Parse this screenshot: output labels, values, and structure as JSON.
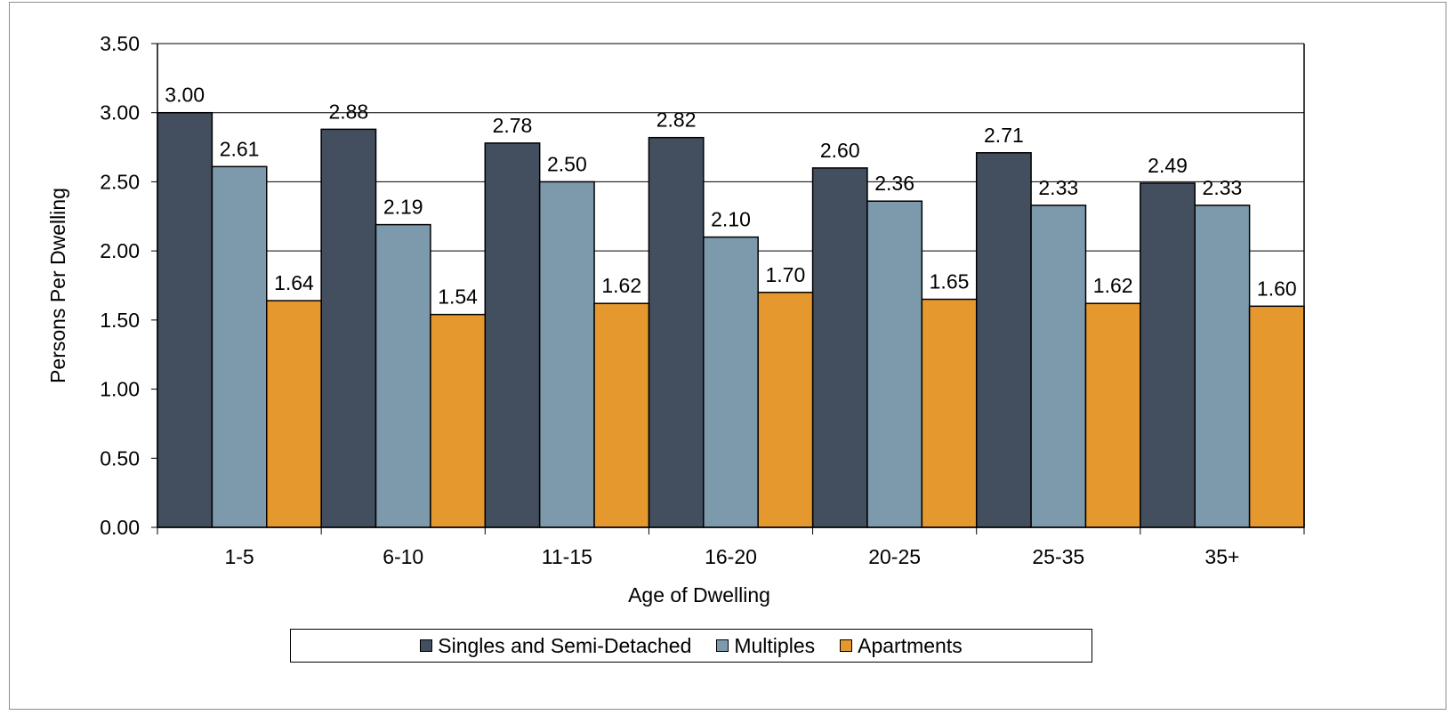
{
  "chart_data": {
    "type": "bar",
    "ylabel": "Persons Per Dwelling",
    "xlabel": "Age of Dwelling",
    "ylim": [
      0,
      3.5
    ],
    "yticks": [
      "0.00",
      "0.50",
      "1.00",
      "1.50",
      "2.00",
      "2.50",
      "3.00",
      "3.50"
    ],
    "ytick_values": [
      0,
      0.5,
      1,
      1.5,
      2,
      2.5,
      3,
      3.5
    ],
    "categories": [
      "1-5",
      "6-10",
      "11-15",
      "16-20",
      "20-25",
      "25-35",
      "35+"
    ],
    "grid": "horizontal",
    "legend_position": "bottom",
    "series": [
      {
        "name": "Singles and Semi-Detached",
        "color": "#434f5e",
        "values": [
          3.0,
          2.88,
          2.78,
          2.82,
          2.6,
          2.71,
          2.49
        ],
        "labels": [
          "3.00",
          "2.88",
          "2.78",
          "2.82",
          "2.60",
          "2.71",
          "2.49"
        ]
      },
      {
        "name": "Multiples",
        "color": "#7d9aad",
        "values": [
          2.61,
          2.19,
          2.5,
          2.1,
          2.36,
          2.33,
          2.33
        ],
        "labels": [
          "2.61",
          "2.19",
          "2.50",
          "2.10",
          "2.36",
          "2.33",
          "2.33"
        ]
      },
      {
        "name": "Apartments",
        "color": "#e4982e",
        "values": [
          1.64,
          1.54,
          1.62,
          1.7,
          1.65,
          1.62,
          1.6
        ],
        "labels": [
          "1.64",
          "1.54",
          "1.62",
          "1.70",
          "1.65",
          "1.62",
          "1.60"
        ]
      }
    ]
  }
}
